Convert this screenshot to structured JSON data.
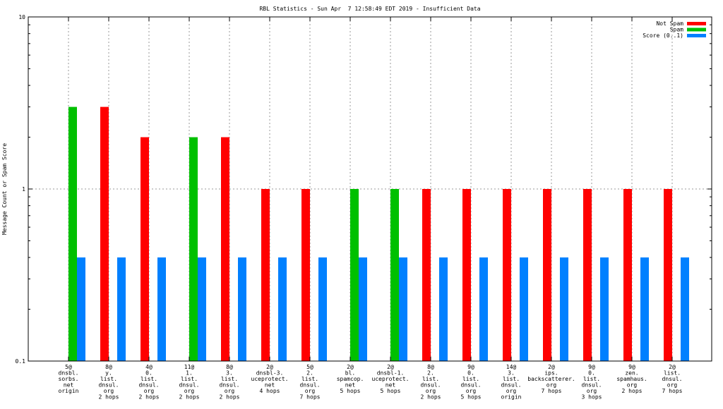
{
  "chart_data": {
    "type": "bar",
    "title": "RBL Statistics - Sun Apr  7 12:58:49 EDT 2019 - Insufficient Data",
    "ylabel": "Message Count or Spam Score",
    "xlabel": "",
    "yscale": "log",
    "ylim": [
      0.1,
      10
    ],
    "yticks": [
      {
        "value": 0.1,
        "label": "0.1"
      },
      {
        "value": 1,
        "label": "1"
      },
      {
        "value": 10,
        "label": "10"
      }
    ],
    "grid": true,
    "legend_position": "top-right",
    "categories": [
      [
        "5@",
        "dnsbl.",
        "sorbs.",
        "net",
        "origin"
      ],
      [
        "8@",
        "y.",
        "list.",
        "dnsul.",
        "org",
        "2 hops"
      ],
      [
        "4@",
        "0.",
        "list.",
        "dnsul.",
        "org",
        "2 hops"
      ],
      [
        "11@",
        "1.",
        "list.",
        "dnsul.",
        "org",
        "2 hops"
      ],
      [
        "8@",
        "3.",
        "list.",
        "dnsul.",
        "org",
        "2 hops"
      ],
      [
        "2@",
        "dnsbl-3.",
        "uceprotect.",
        "net",
        "4 hops"
      ],
      [
        "5@",
        "2.",
        "list.",
        "dnsul.",
        "org",
        "7 hops"
      ],
      [
        "2@",
        "bl.",
        "spamcop.",
        "net",
        "5 hops"
      ],
      [
        "2@",
        "dnsbl-1.",
        "uceprotect.",
        "net",
        "5 hops"
      ],
      [
        "8@",
        "2.",
        "list.",
        "dnsul.",
        "org",
        "2 hops"
      ],
      [
        "9@",
        "0.",
        "list.",
        "dnsul.",
        "org",
        "5 hops"
      ],
      [
        "14@",
        "3.",
        "list.",
        "dnsul.",
        "org",
        "origin"
      ],
      [
        "2@",
        "ips.",
        "backscatterer.",
        "org",
        "7 hops"
      ],
      [
        "9@",
        "0.",
        "list.",
        "dnsul.",
        "org",
        "3 hops"
      ],
      [
        "9@",
        "zen.",
        "spamhaus.",
        "org",
        "2 hops"
      ],
      [
        "2@",
        "list.",
        "dnsul.",
        "org",
        "7 hops"
      ]
    ],
    "series": [
      {
        "name": "Not Spam",
        "color": "#ff0000",
        "values": [
          null,
          3,
          2,
          null,
          2,
          1,
          1,
          null,
          null,
          1,
          1,
          1,
          1,
          1,
          1,
          1
        ]
      },
      {
        "name": "Spam",
        "color": "#00c000",
        "values": [
          3,
          null,
          null,
          2,
          null,
          null,
          null,
          1,
          1,
          null,
          null,
          null,
          null,
          null,
          null,
          null
        ]
      },
      {
        "name": "Score (0..1)",
        "color": "#0080ff",
        "values": [
          0.4,
          0.4,
          0.4,
          0.4,
          0.4,
          0.4,
          0.4,
          0.4,
          0.4,
          0.4,
          0.4,
          0.4,
          0.4,
          0.4,
          0.4,
          0.4
        ]
      }
    ]
  }
}
